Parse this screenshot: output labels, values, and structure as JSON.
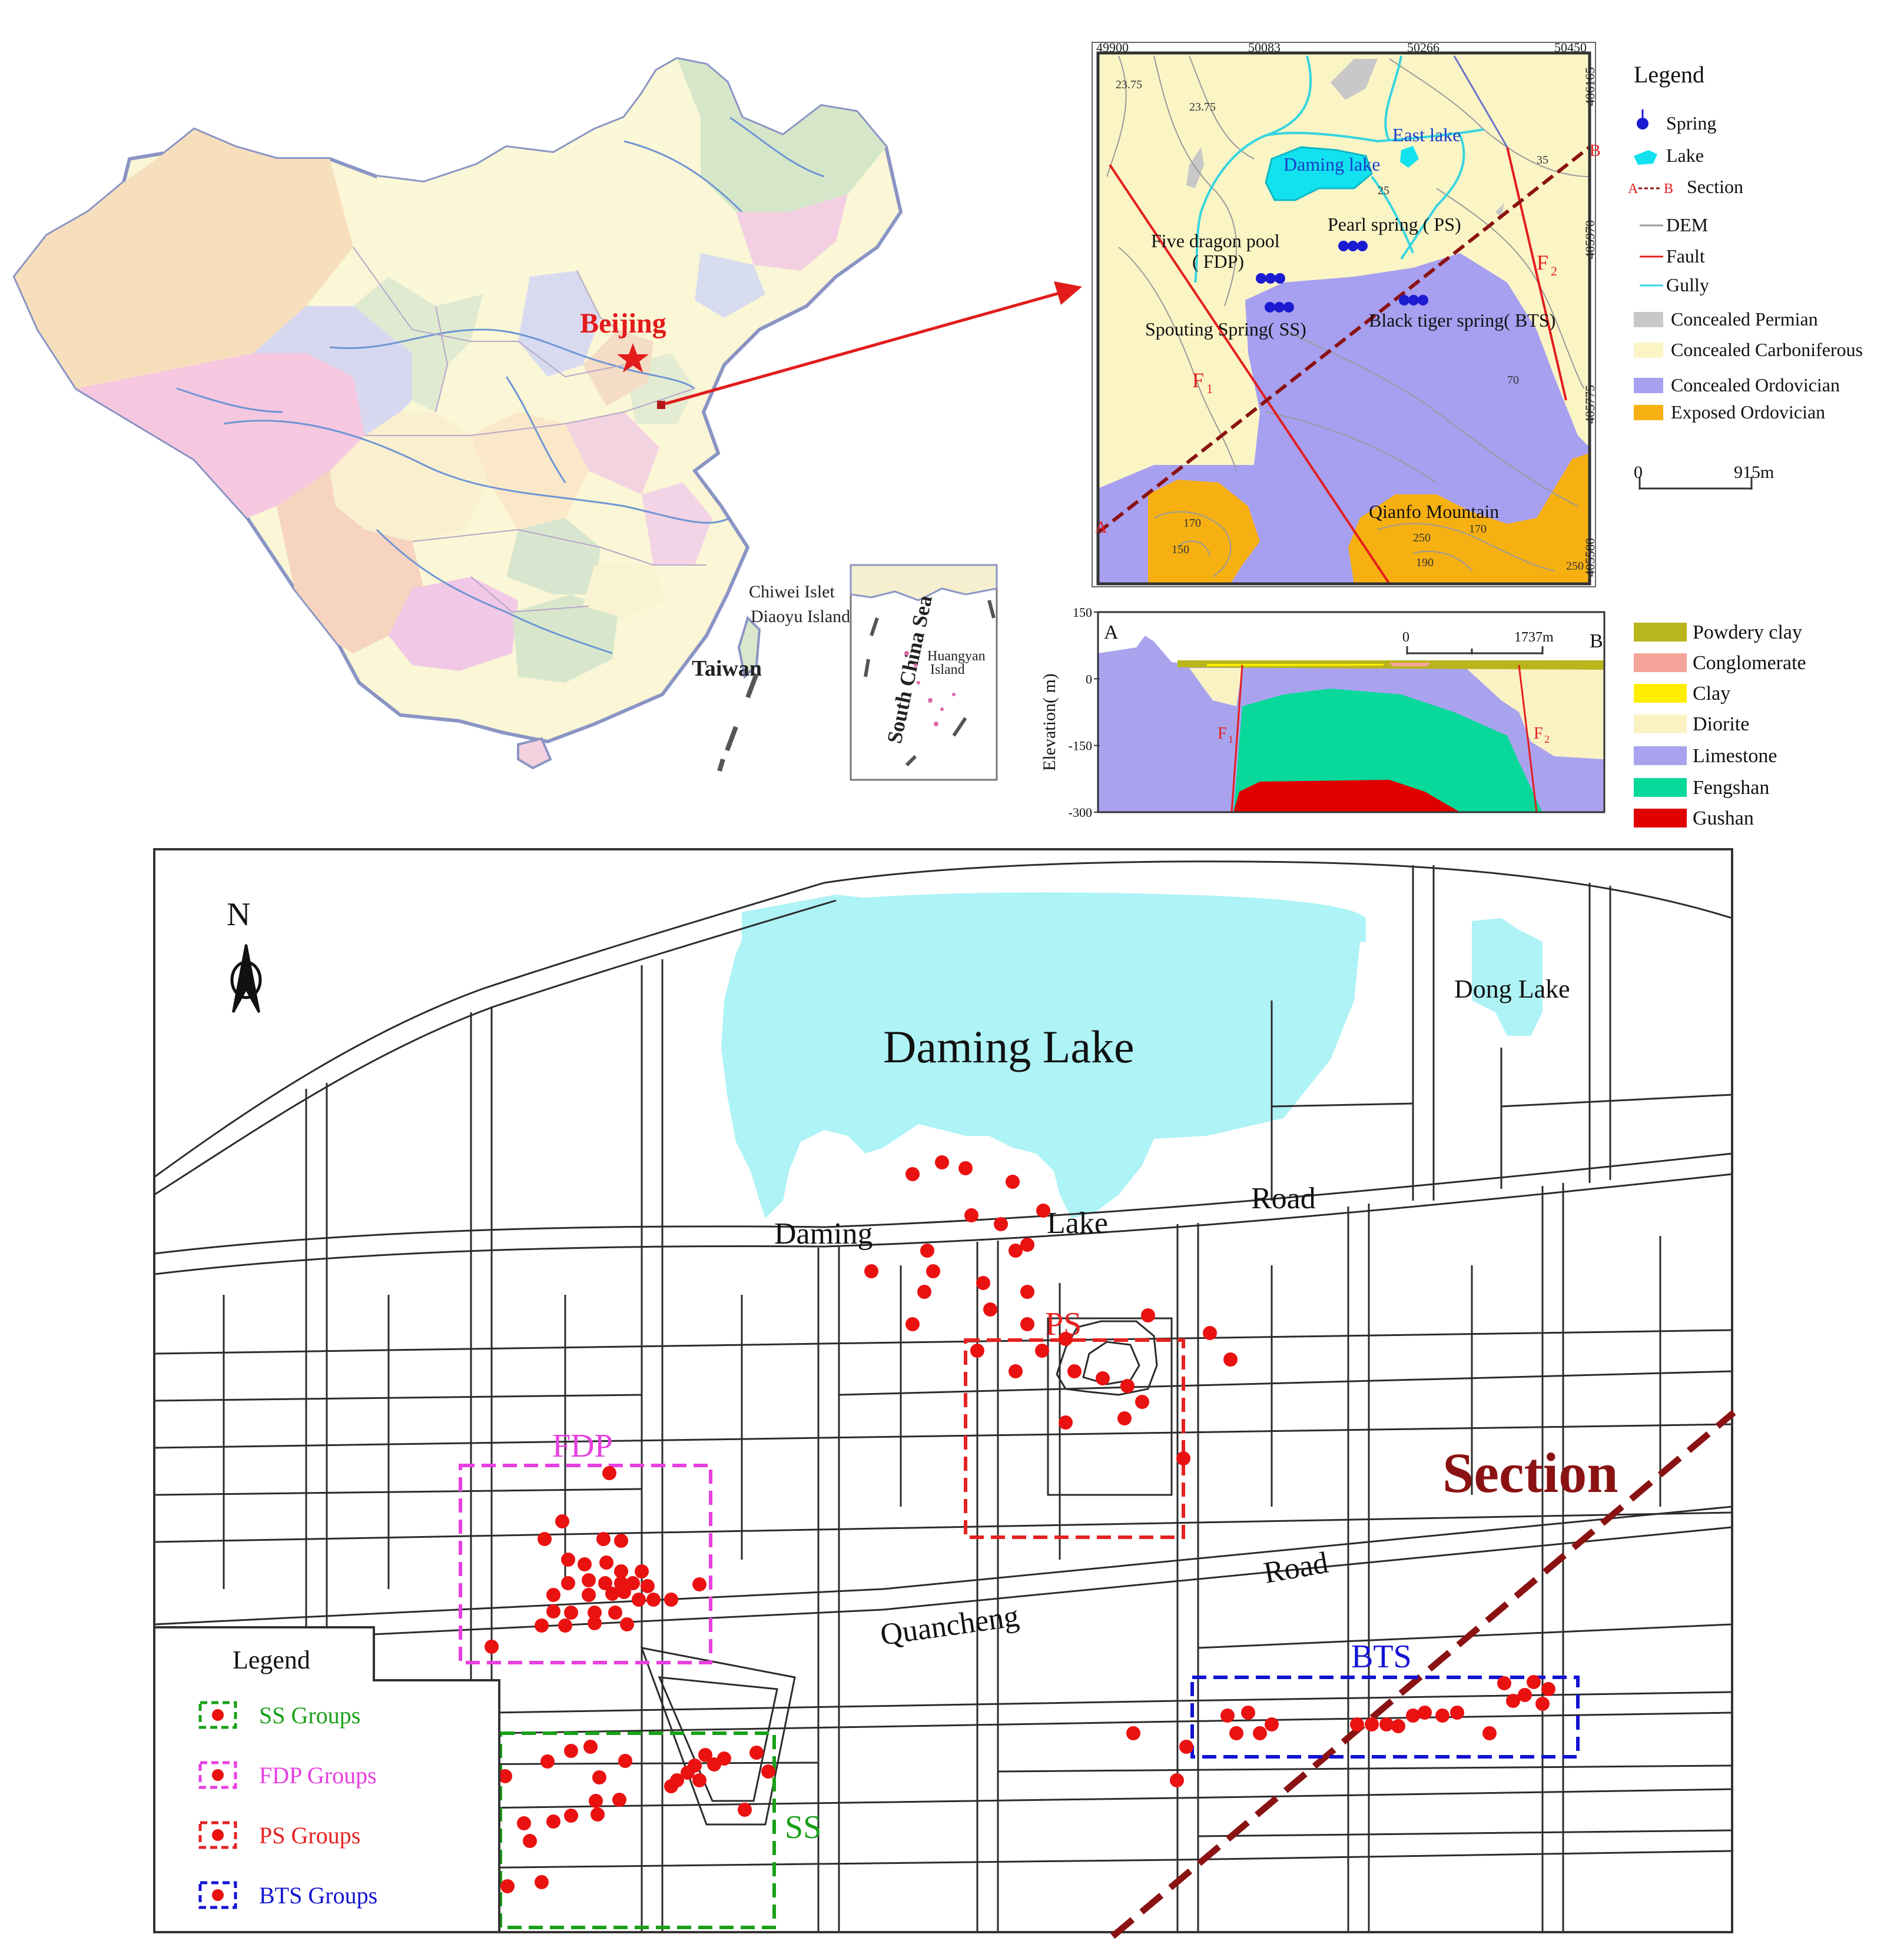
{
  "colors": {
    "lake": "#aef3f5",
    "carboniferous": "#fbf5c6",
    "ordovician_concealed": "#a79ff0",
    "ordovician_exposed": "#f6b011",
    "permian": "#c8c8c8",
    "powdery_clay": "#b9b51c",
    "conglomerate": "#f5a49a",
    "clay": "#ffee00",
    "diorite": "#fbf2c4",
    "limestone": "#a9a3ee",
    "fengshan": "#08d99a",
    "gushan": "#e10000",
    "fault": "#e41d1d",
    "gully": "#36d5e0",
    "section": "#8b1212",
    "spring_point": "#ea1111",
    "ss_group": "#19a019",
    "fdp_group": "#e83fe0",
    "ps_group": "#e52121",
    "bts_group": "#1212d2"
  },
  "china_map": {
    "capital_label": "Beijing",
    "labels": [
      "Chiwei Islet",
      "Diaoyu Island",
      "Taiwan"
    ],
    "inset": {
      "sea_label": "South China Sea",
      "island_label_1": "Huangyan",
      "island_label_2": "Island"
    }
  },
  "geo_map": {
    "top_ticks": [
      "49900",
      "50083",
      "50266",
      "50450"
    ],
    "right_ticks": [
      "406165",
      "405970",
      "405775",
      "405580"
    ],
    "contour_values": [
      "23.75",
      "23.75",
      "25",
      "35",
      "70",
      "170",
      "150",
      "250",
      "170",
      "190",
      "250"
    ],
    "features": {
      "daming_lake": "Daming lake",
      "east_lake": "East lake",
      "five_dragon_pool_1": "Five  dragon pool",
      "five_dragon_pool_2": "( FDP)",
      "pearl_spring": "Pearl spring ( PS)",
      "spouting_spring": "Spouting Spring( SS)",
      "black_tiger_spring": "Black tiger spring( BTS)",
      "qianfo_mountain": "Qianfo Mountain",
      "fault_1": "F",
      "fault_1_sub": "1",
      "fault_2": "F",
      "fault_2_sub": "2",
      "point_a": "A",
      "point_b": "B"
    }
  },
  "geo_legend": {
    "title": "Legend",
    "items": [
      "Spring",
      "Lake",
      "Section",
      "DEM",
      "Fault",
      "Gully",
      "Concealed Permian",
      "Concealed Carboniferous",
      "Concealed Ordovician",
      "Exposed Ordovician"
    ],
    "section_prefix": "A",
    "section_suffix": "B",
    "scale_start": "0",
    "scale_end": "915m"
  },
  "cross_section": {
    "ylabel": "Elevation( m)",
    "yticks": [
      "150",
      "0",
      "-150",
      "-300"
    ],
    "ylim": [
      -300,
      150
    ],
    "label_a": "A",
    "label_b": "B",
    "scale_start": "0",
    "scale_end": "1737m",
    "fault_1": "F",
    "fault_1_sub": "1",
    "fault_2": "F",
    "fault_2_sub": "2"
  },
  "strata_legend": [
    "Powdery clay",
    "Conglomerate",
    "Clay",
    "Diorite",
    "Limestone",
    "Fengshan",
    "Gushan"
  ],
  "street_map": {
    "north": "N",
    "labels": {
      "daming_lake": "Daming Lake",
      "dong_lake": "Dong Lake",
      "road_1a": "Daming",
      "road_1b": "Lake",
      "road_1c": "Road",
      "road_2a": "Quancheng",
      "road_2b": "Road",
      "section": "Section",
      "group_ps": "PS",
      "group_fdp": "FDP",
      "group_bts": "BTS",
      "group_ss": "SS"
    },
    "legend": {
      "title": "Legend",
      "items": [
        "SS  Groups",
        "FDP  Groups",
        "PS  Groups",
        "BTS  Groups"
      ]
    }
  },
  "sample_points": {
    "ss": [
      [
        858,
        3018
      ],
      [
        930,
        2993
      ],
      [
        970,
        2975
      ],
      [
        1003,
        2968
      ],
      [
        1018,
        3020
      ],
      [
        1062,
        2992
      ],
      [
        1012,
        3060
      ],
      [
        1052,
        3058
      ],
      [
        890,
        3098
      ],
      [
        940,
        3095
      ],
      [
        970,
        3085
      ],
      [
        1015,
        3083
      ],
      [
        900,
        3128
      ],
      [
        862,
        3205
      ],
      [
        920,
        3198
      ],
      [
        1140,
        3035
      ],
      [
        1150,
        3025
      ],
      [
        1168,
        3012
      ],
      [
        1180,
        3000
      ],
      [
        1188,
        3025
      ],
      [
        1198,
        2982
      ],
      [
        1213,
        2998
      ],
      [
        1230,
        2988
      ],
      [
        1285,
        2978
      ],
      [
        1305,
        3010
      ],
      [
        1265,
        3075
      ]
    ],
    "fdp": [
      [
        1035,
        2503
      ],
      [
        955,
        2585
      ],
      [
        925,
        2615
      ],
      [
        1025,
        2615
      ],
      [
        1055,
        2618
      ],
      [
        965,
        2650
      ],
      [
        993,
        2658
      ],
      [
        1030,
        2655
      ],
      [
        1055,
        2670
      ],
      [
        1090,
        2670
      ],
      [
        965,
        2690
      ],
      [
        1000,
        2685
      ],
      [
        1028,
        2690
      ],
      [
        1055,
        2690
      ],
      [
        1075,
        2690
      ],
      [
        1100,
        2695
      ],
      [
        1060,
        2705
      ],
      [
        940,
        2710
      ],
      [
        1000,
        2710
      ],
      [
        1040,
        2708
      ],
      [
        1085,
        2718
      ],
      [
        1110,
        2718
      ],
      [
        1140,
        2718
      ],
      [
        940,
        2738
      ],
      [
        970,
        2740
      ],
      [
        1010,
        2740
      ],
      [
        1045,
        2740
      ],
      [
        920,
        2762
      ],
      [
        960,
        2762
      ],
      [
        1010,
        2758
      ],
      [
        1065,
        2760
      ],
      [
        1188,
        2692
      ],
      [
        835,
        2798
      ]
    ],
    "ps": [
      [
        1550,
        1995
      ],
      [
        1600,
        1975
      ],
      [
        1640,
        1985
      ],
      [
        1720,
        2008
      ],
      [
        1772,
        2057
      ],
      [
        1650,
        2065
      ],
      [
        1550,
        2250
      ],
      [
        1480,
        2160
      ],
      [
        1570,
        2195
      ],
      [
        1585,
        2160
      ],
      [
        1575,
        2125
      ],
      [
        1700,
        2080
      ],
      [
        1725,
        2125
      ],
      [
        1745,
        2115
      ],
      [
        1670,
        2180
      ],
      [
        1745,
        2195
      ],
      [
        1682,
        2225
      ],
      [
        1745,
        2250
      ],
      [
        1810,
        2275
      ],
      [
        1660,
        2295
      ],
      [
        1770,
        2295
      ],
      [
        1725,
        2330
      ],
      [
        1825,
        2330
      ],
      [
        1873,
        2342
      ],
      [
        1915,
        2355
      ],
      [
        1940,
        2382
      ],
      [
        1810,
        2417
      ],
      [
        1910,
        2410
      ],
      [
        2010,
        2478
      ],
      [
        1950,
        2235
      ],
      [
        2055,
        2265
      ],
      [
        2090,
        2310
      ]
    ],
    "bts": [
      [
        1925,
        2945
      ],
      [
        2015,
        2968
      ],
      [
        2085,
        2915
      ],
      [
        2120,
        2910
      ],
      [
        2160,
        2930
      ],
      [
        2100,
        2945
      ],
      [
        2140,
        2945
      ],
      [
        2305,
        2930
      ],
      [
        2330,
        2930
      ],
      [
        2355,
        2930
      ],
      [
        2375,
        2933
      ],
      [
        2400,
        2915
      ],
      [
        2420,
        2910
      ],
      [
        2450,
        2915
      ],
      [
        2475,
        2910
      ],
      [
        2530,
        2945
      ],
      [
        2570,
        2890
      ],
      [
        2590,
        2880
      ],
      [
        2620,
        2895
      ],
      [
        2555,
        2860
      ],
      [
        2605,
        2858
      ],
      [
        2630,
        2870
      ],
      [
        1999,
        3025
      ]
    ]
  }
}
